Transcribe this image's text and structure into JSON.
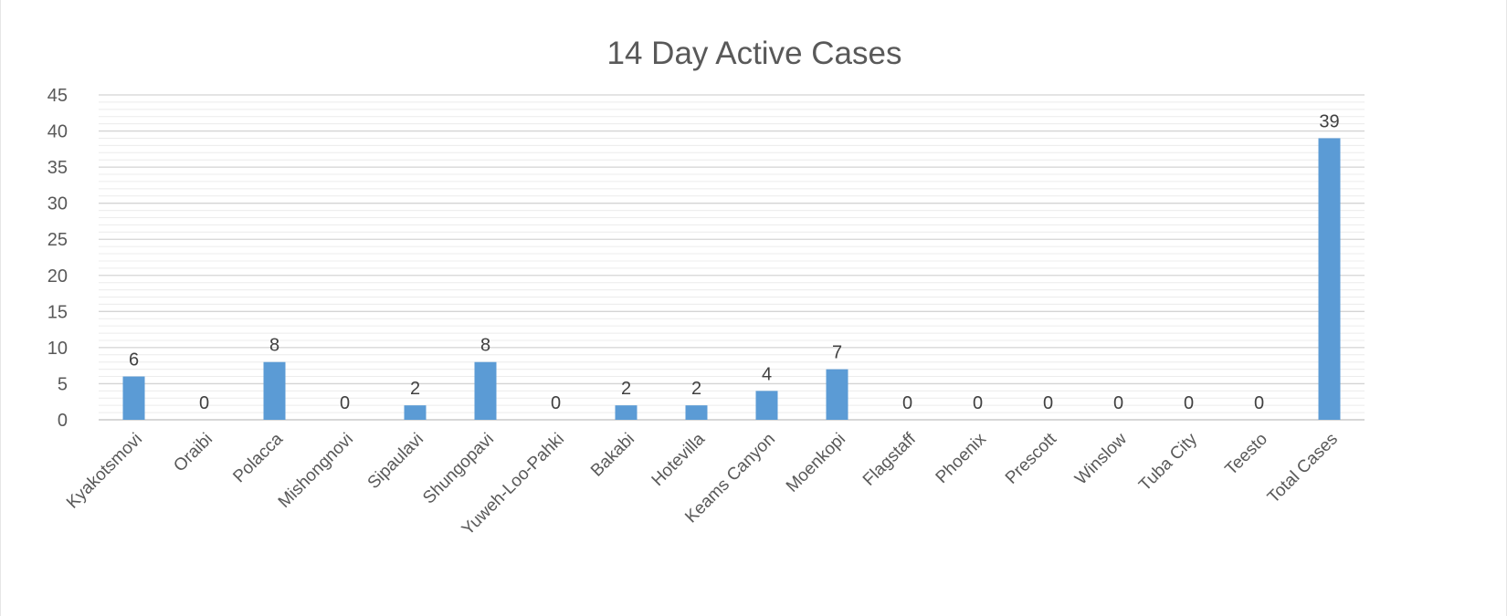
{
  "chart_data": {
    "type": "bar",
    "title": "14 Day Active Cases",
    "categories": [
      "Kyakotsmovi",
      "Oraibi",
      "Polacca",
      "Mishongnovi",
      "Sipaulavi",
      "Shungopavi",
      "Yuweh-Loo-Pahki",
      "Bakabi",
      "Hotevilla",
      "Keams Canyon",
      "Moenkopi",
      "Flagstaff",
      "Phoenix",
      "Prescott",
      "Winslow",
      "Tuba City",
      "Teesto",
      "Total Cases"
    ],
    "values": [
      6,
      0,
      8,
      0,
      2,
      8,
      0,
      2,
      2,
      4,
      7,
      0,
      0,
      0,
      0,
      0,
      0,
      39
    ],
    "ylim": [
      0,
      45
    ],
    "yticks": [
      0,
      5,
      10,
      15,
      20,
      25,
      30,
      35,
      40,
      45
    ],
    "grid": true,
    "bar_color": "#5B9BD5",
    "grid_color": "#d9d9d9",
    "text_color": "#595959"
  }
}
